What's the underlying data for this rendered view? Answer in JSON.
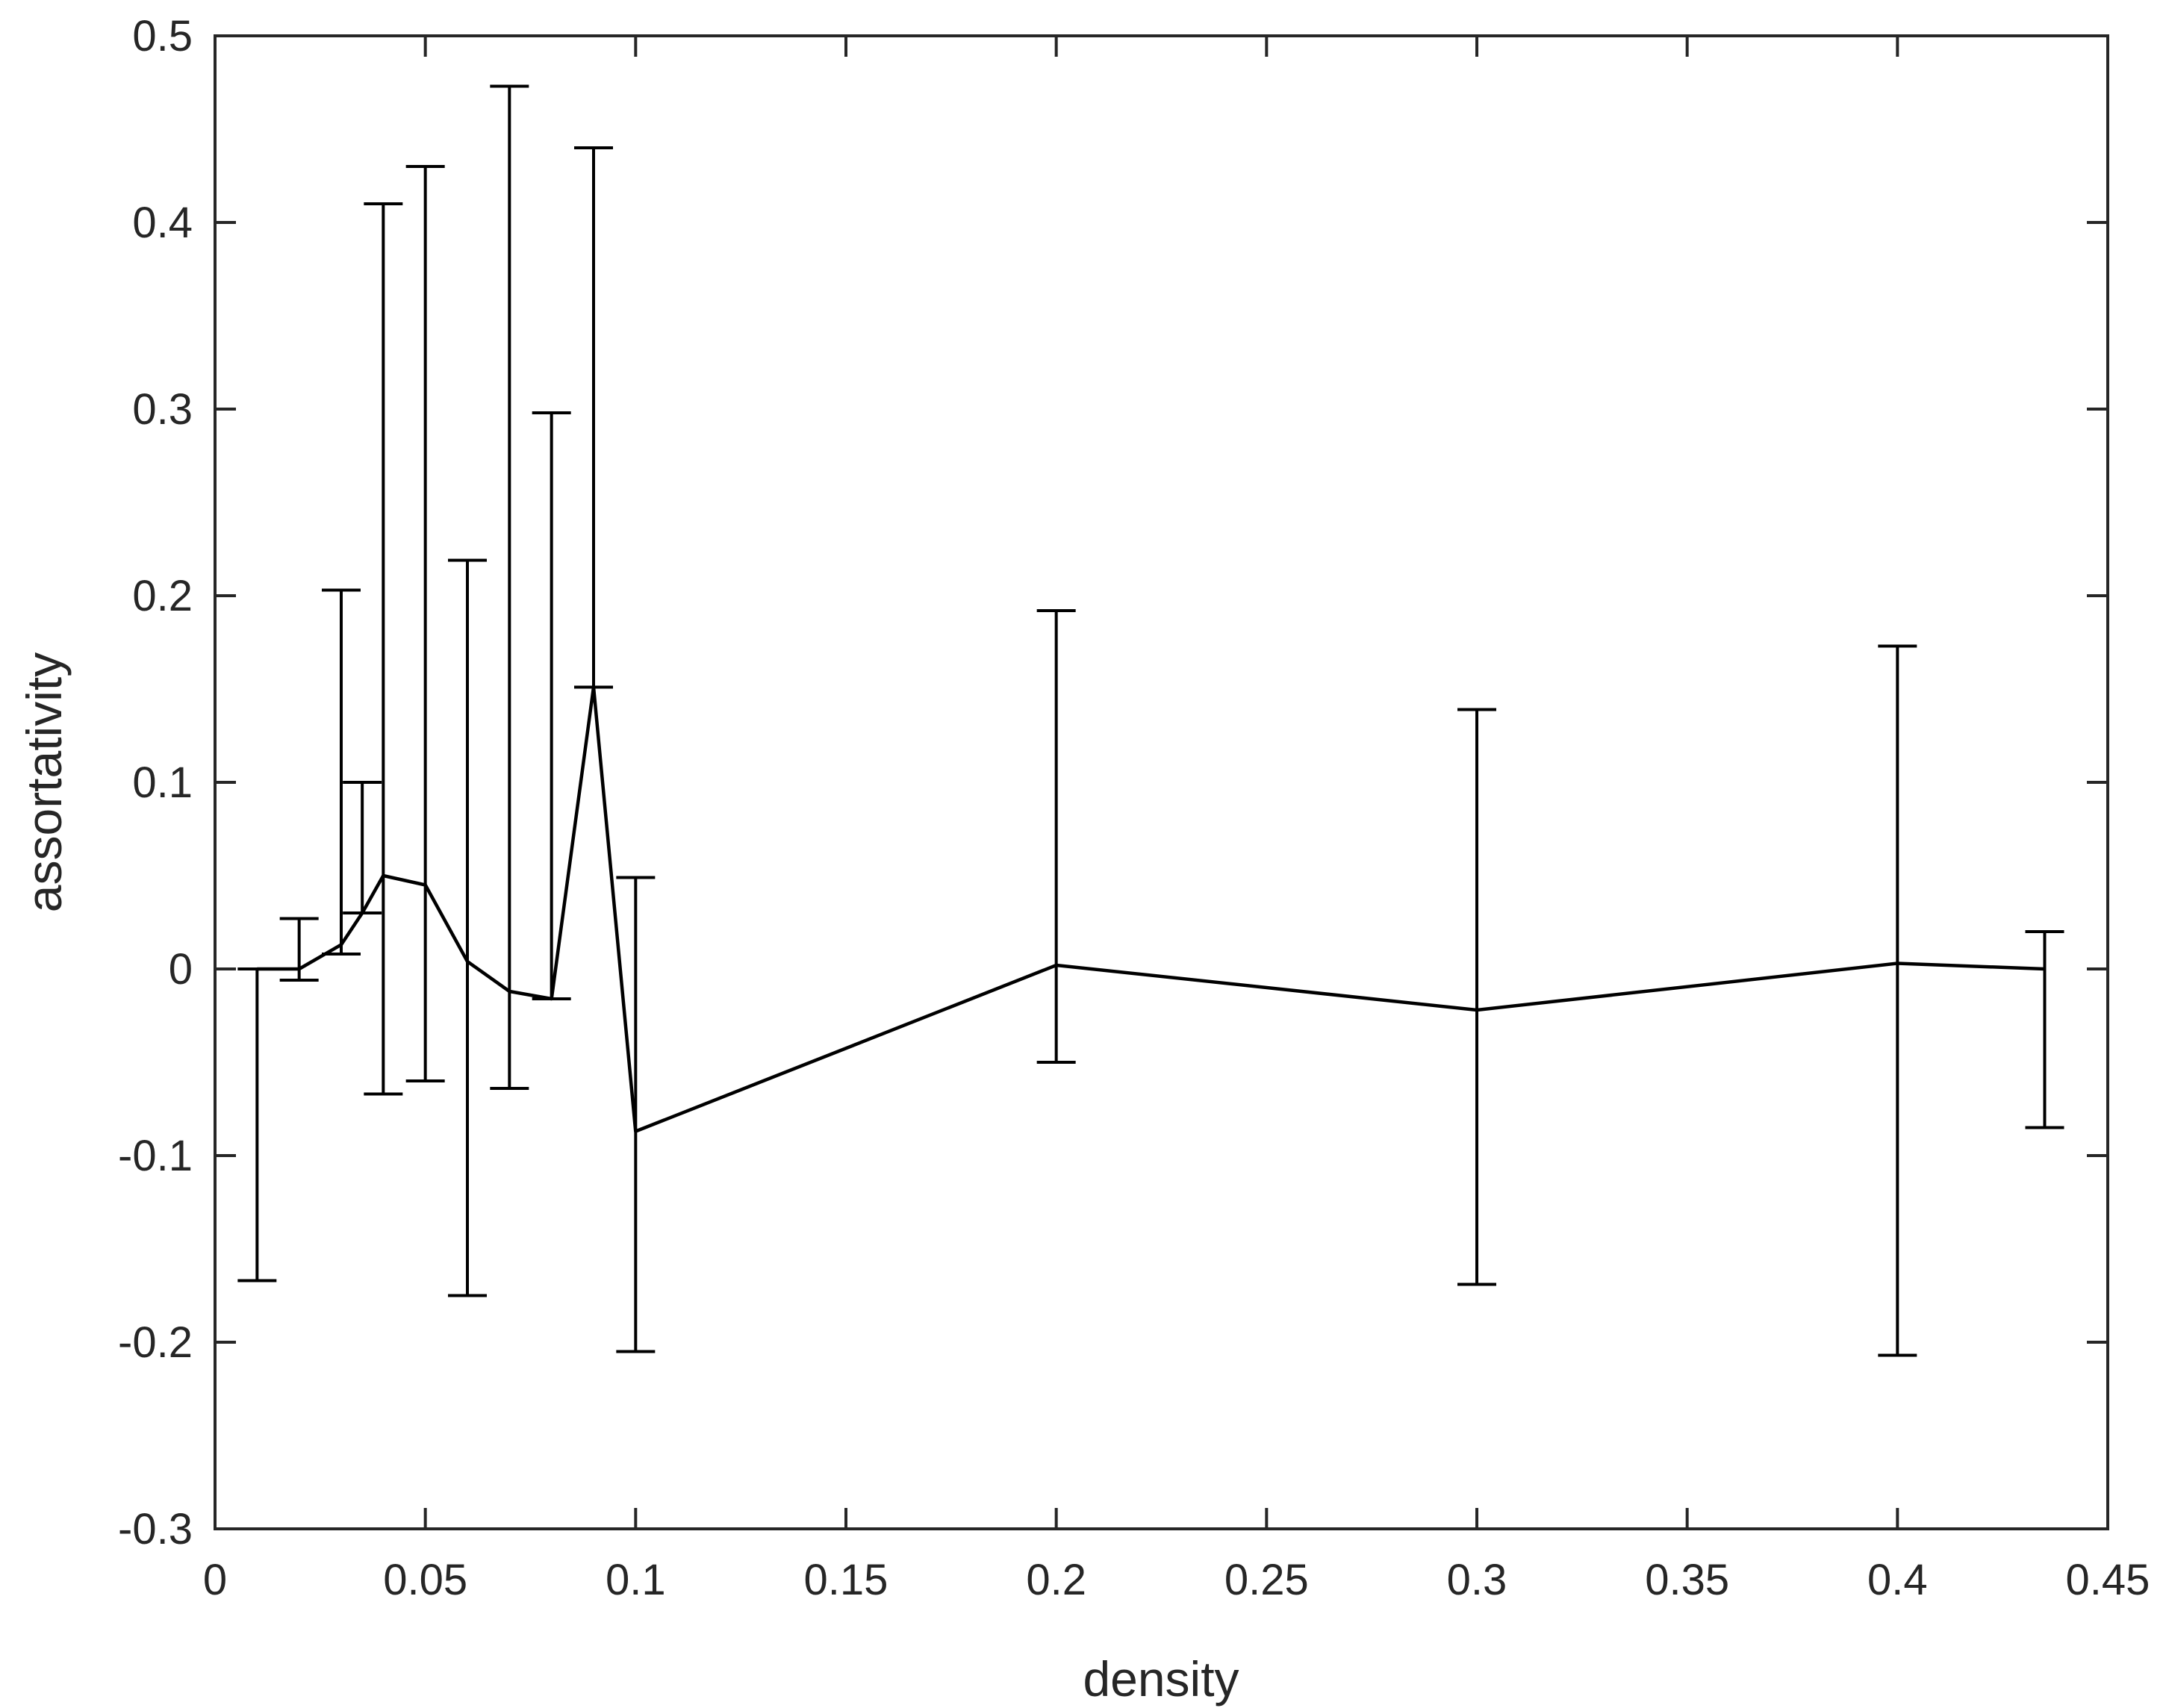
{
  "chart_data": {
    "type": "line",
    "title": "",
    "xlabel": "density",
    "ylabel": "assortativity",
    "xlim": [
      0,
      0.45
    ],
    "ylim": [
      -0.3,
      0.5
    ],
    "xticks": [
      "0",
      "0.05",
      "0.1",
      "0.15",
      "0.2",
      "0.25",
      "0.3",
      "0.35",
      "0.4",
      "0.45"
    ],
    "yticks": [
      "-0.3",
      "-0.2",
      "-0.1",
      "0",
      "0.1",
      "0.2",
      "0.3",
      "0.4",
      "0.5"
    ],
    "grid": false,
    "legend": "none",
    "line_color": "#000000",
    "series": [
      {
        "x": [
          0.01,
          0.02,
          0.03,
          0.035,
          0.04,
          0.05,
          0.06,
          0.07,
          0.08,
          0.09,
          0.1,
          0.2,
          0.3,
          0.4,
          0.435
        ],
        "y": [
          0.0,
          0.0,
          0.013,
          0.03,
          0.05,
          0.045,
          0.004,
          -0.012,
          -0.016,
          0.151,
          -0.087,
          0.002,
          -0.022,
          0.003,
          0.0
        ],
        "lower": [
          -0.167,
          -0.006,
          0.008,
          0.03,
          -0.067,
          -0.06,
          -0.175,
          -0.064,
          -0.016,
          0.151,
          -0.205,
          -0.05,
          -0.169,
          -0.207,
          -0.085
        ],
        "upper": [
          0.0,
          0.027,
          0.203,
          0.1,
          0.41,
          0.43,
          0.219,
          0.473,
          0.298,
          0.44,
          0.049,
          0.192,
          0.139,
          0.173,
          0.02
        ]
      }
    ]
  }
}
